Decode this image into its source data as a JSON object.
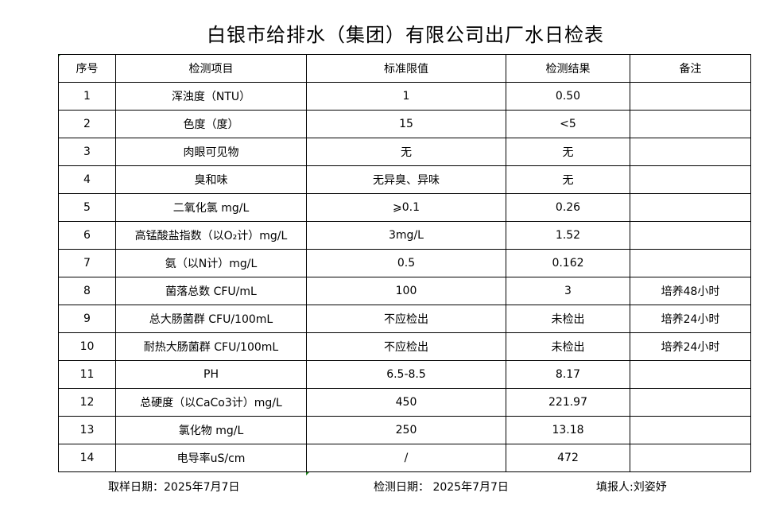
{
  "title": "白银市给排水（集团）有限公司出厂水日检表",
  "columns": [
    "序号",
    "检测项目",
    "标准限值",
    "检测结果",
    "备注"
  ],
  "rows": [
    {
      "no": "1",
      "item": "浑浊度（NTU）",
      "limit": "1",
      "result": "0.50",
      "note": ""
    },
    {
      "no": "2",
      "item": "色度（度）",
      "limit": "15",
      "result": "<5",
      "note": ""
    },
    {
      "no": "3",
      "item": "肉眼可见物",
      "limit": "无",
      "result": "无",
      "note": ""
    },
    {
      "no": "4",
      "item": "臭和味",
      "limit": "无异臭、异味",
      "result": "无",
      "note": ""
    },
    {
      "no": "5",
      "item": "二氧化氯 mg/L",
      "limit": "⩾0.1",
      "result": "0.26",
      "note": ""
    },
    {
      "no": "6",
      "item": "高锰酸盐指数（以O₂计）mg/L",
      "limit": "3mg/L",
      "result": "1.52",
      "note": ""
    },
    {
      "no": "7",
      "item": "氨（以N计）mg/L",
      "limit": "0.5",
      "result": "0.162",
      "note": ""
    },
    {
      "no": "8",
      "item": "菌落总数 CFU/mL",
      "limit": "100",
      "result": "3",
      "note": "培养48小时"
    },
    {
      "no": "9",
      "item": "总大肠菌群 CFU/100mL",
      "limit": "不应检出",
      "result": "未检出",
      "note": "培养24小时"
    },
    {
      "no": "10",
      "item": "耐热大肠菌群 CFU/100mL",
      "limit": "不应检出",
      "result": "未检出",
      "note": "培养24小时"
    },
    {
      "no": "11",
      "item": "PH",
      "limit": "6.5-8.5",
      "result": "8.17",
      "note": ""
    },
    {
      "no": "12",
      "item": "总硬度（以CaCo3计）mg/L",
      "limit": "450",
      "result": "221.97",
      "note": ""
    },
    {
      "no": "13",
      "item": "氯化物 mg/L",
      "limit": "250",
      "result": "13.18",
      "note": ""
    },
    {
      "no": "14",
      "item": "电导率uS/cm",
      "limit": "/",
      "result": "472",
      "note": ""
    }
  ],
  "footer": {
    "sample_date": "取样日期：2025年7月7日",
    "test_date": "检测日期： 2025年7月7日",
    "reporter": "填报人:刘姿妤"
  }
}
